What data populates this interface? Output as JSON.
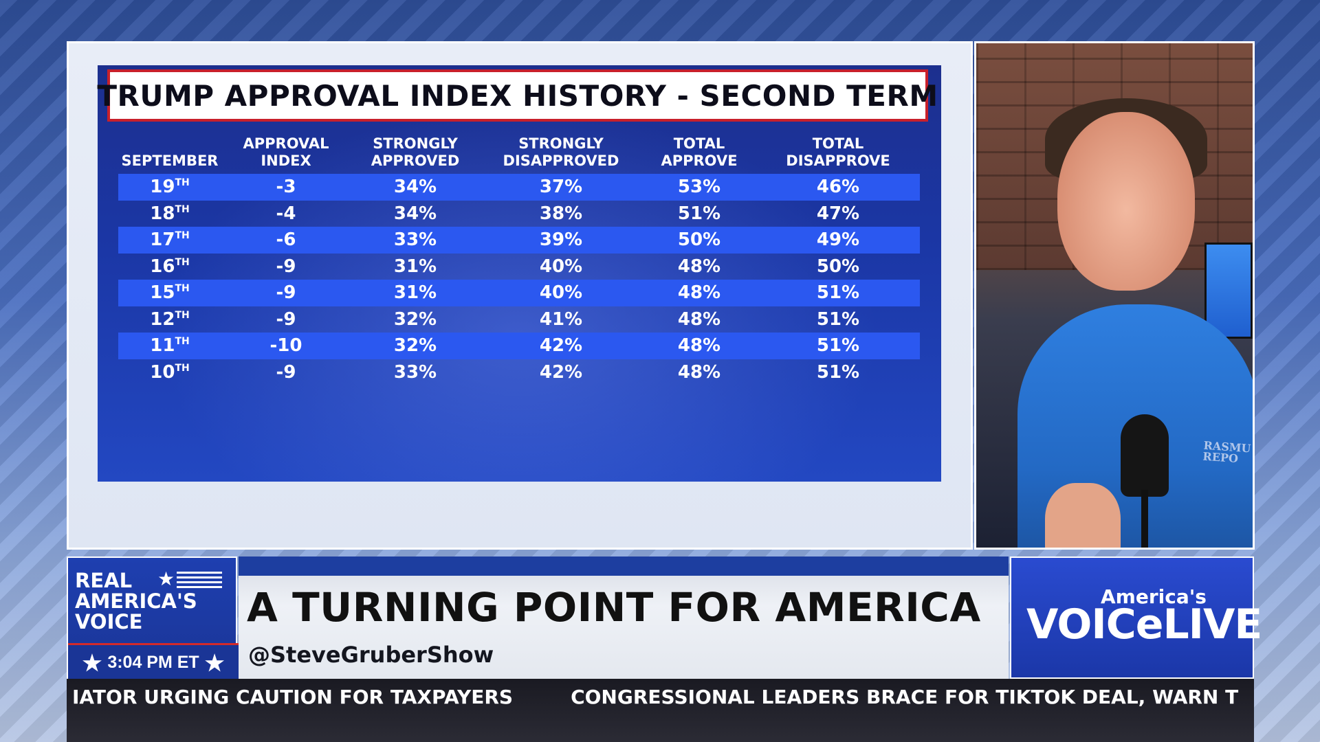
{
  "graphic": {
    "title": "TRUMP APPROVAL INDEX HISTORY - SECOND TERM",
    "columns": [
      "SEPTEMBER",
      "APPROVAL\nINDEX",
      "STRONGLY\nAPPROVED",
      "STRONGLY\nDISAPPROVED",
      "TOTAL\nAPPROVE",
      "TOTAL\nDISAPPROVE"
    ],
    "rows": [
      {
        "day": "19",
        "suffix": "TH",
        "approval_index": "-3",
        "strongly_approved": "34%",
        "strongly_disapproved": "37%",
        "total_approve": "53%",
        "total_disapprove": "46%"
      },
      {
        "day": "18",
        "suffix": "TH",
        "approval_index": "-4",
        "strongly_approved": "34%",
        "strongly_disapproved": "38%",
        "total_approve": "51%",
        "total_disapprove": "47%"
      },
      {
        "day": "17",
        "suffix": "TH",
        "approval_index": "-6",
        "strongly_approved": "33%",
        "strongly_disapproved": "39%",
        "total_approve": "50%",
        "total_disapprove": "49%"
      },
      {
        "day": "16",
        "suffix": "TH",
        "approval_index": "-9",
        "strongly_approved": "31%",
        "strongly_disapproved": "40%",
        "total_approve": "48%",
        "total_disapprove": "50%"
      },
      {
        "day": "15",
        "suffix": "TH",
        "approval_index": "-9",
        "strongly_approved": "31%",
        "strongly_disapproved": "40%",
        "total_approve": "48%",
        "total_disapprove": "51%"
      },
      {
        "day": "12",
        "suffix": "TH",
        "approval_index": "-9",
        "strongly_approved": "32%",
        "strongly_disapproved": "41%",
        "total_approve": "48%",
        "total_disapprove": "51%"
      },
      {
        "day": "11",
        "suffix": "TH",
        "approval_index": "-10",
        "strongly_approved": "32%",
        "strongly_disapproved": "42%",
        "total_approve": "48%",
        "total_disapprove": "51%"
      },
      {
        "day": "10",
        "suffix": "TH",
        "approval_index": "-9",
        "strongly_approved": "33%",
        "strongly_disapproved": "42%",
        "total_approve": "48%",
        "total_disapprove": "51%"
      }
    ]
  },
  "video": {
    "shirt_logo": "RASMU\nREPO"
  },
  "lower_third": {
    "network_logo": "REAL\nAMERICA'S\nVOICE",
    "time": "3:04 PM ET",
    "headline": "A TURNING POINT FOR AMERICA",
    "handle": "@SteveGruberShow",
    "show_logo_small": "America's",
    "show_logo_main": "VOICeLIVE"
  },
  "ticker": {
    "items": [
      "IATOR URGING CAUTION FOR TAXPAYERS",
      "CONGRESSIONAL LEADERS BRACE FOR TIKTOK DEAL, WARN T"
    ]
  },
  "colors": {
    "stripe": "#2b58f0",
    "board": "#1b37a6",
    "title_border": "#c8202b",
    "network_blue": "#1a3596"
  },
  "icons": {
    "time_star": "star-icon",
    "logo_star": "star-icon"
  }
}
